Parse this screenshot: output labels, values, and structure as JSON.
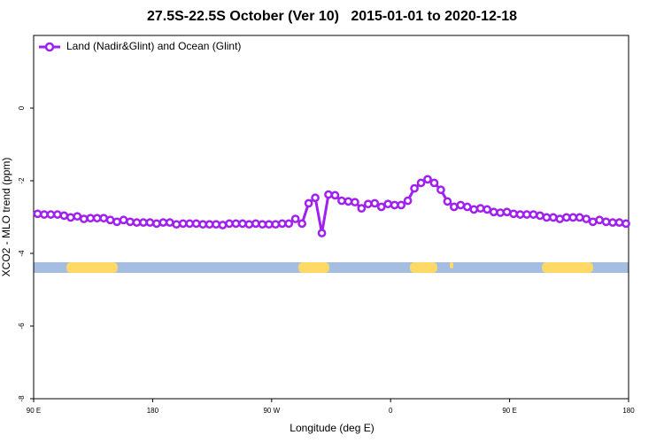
{
  "chart_data": {
    "type": "line",
    "title": "27.5S-22.5S October (Ver 10)   2015-01-01 to 2020-12-18",
    "x_label": "Longitude (deg E)",
    "y_label": "XCO2 - MLO trend (ppm)",
    "xlim": [
      90,
      540
    ],
    "xticks": [
      {
        "value": 90,
        "label": "90 E"
      },
      180,
      {
        "value": 270,
        "label": "90 W"
      },
      {
        "value": 360,
        "label": "0"
      },
      {
        "value": 450,
        "label": "90 E"
      },
      {
        "value": 540,
        "label": "180"
      }
    ],
    "ylim": [
      -8,
      2
    ],
    "yticks": [
      -8,
      -6,
      -4,
      -2,
      0
    ],
    "legend": "top-left",
    "x": [
      93,
      98,
      103,
      108,
      113,
      118,
      123,
      128,
      133,
      138,
      143,
      148,
      153,
      158,
      163,
      168,
      173,
      178,
      183,
      188,
      193,
      198,
      203,
      208,
      213,
      218,
      223,
      228,
      233,
      238,
      243,
      248,
      253,
      258,
      263,
      268,
      273,
      278,
      283,
      288,
      293,
      298,
      303,
      308,
      313,
      318,
      323,
      328,
      333,
      338,
      343,
      348,
      353,
      358,
      363,
      368,
      373,
      378,
      383,
      388,
      393,
      398,
      403,
      408,
      413,
      418,
      423,
      428,
      433,
      438,
      443,
      448,
      453,
      458,
      463,
      468,
      473,
      478,
      483,
      488,
      493,
      498,
      503,
      508,
      513,
      518,
      523,
      528,
      533,
      538
    ],
    "series": [
      {
        "name": "Land (Nadir&Glint) and Ocean (Glint)",
        "color": "#a020f0",
        "values": [
          -2.91,
          -2.93,
          -2.93,
          -2.93,
          -2.96,
          -3.01,
          -2.98,
          -3.05,
          -3.03,
          -3.03,
          -3.03,
          -3.08,
          -3.13,
          -3.08,
          -3.13,
          -3.15,
          -3.15,
          -3.15,
          -3.18,
          -3.15,
          -3.15,
          -3.2,
          -3.18,
          -3.18,
          -3.18,
          -3.2,
          -3.2,
          -3.2,
          -3.22,
          -3.18,
          -3.18,
          -3.18,
          -3.2,
          -3.18,
          -3.2,
          -3.2,
          -3.2,
          -3.18,
          -3.18,
          -3.05,
          -3.18,
          -2.62,
          -2.47,
          -3.44,
          -2.38,
          -2.4,
          -2.55,
          -2.57,
          -2.59,
          -2.76,
          -2.64,
          -2.62,
          -2.72,
          -2.64,
          -2.67,
          -2.67,
          -2.55,
          -2.21,
          -2.06,
          -1.96,
          -2.06,
          -2.25,
          -2.57,
          -2.72,
          -2.67,
          -2.72,
          -2.79,
          -2.76,
          -2.79,
          -2.86,
          -2.88,
          -2.86,
          -2.91,
          -2.93,
          -2.93,
          -2.93,
          -2.96,
          -3.01,
          -3.01,
          -3.05,
          -3.01,
          -3.01,
          -3.01,
          -3.05,
          -3.13,
          -3.08,
          -3.13,
          -3.15,
          -3.15,
          -3.18
        ]
      }
    ]
  }
}
